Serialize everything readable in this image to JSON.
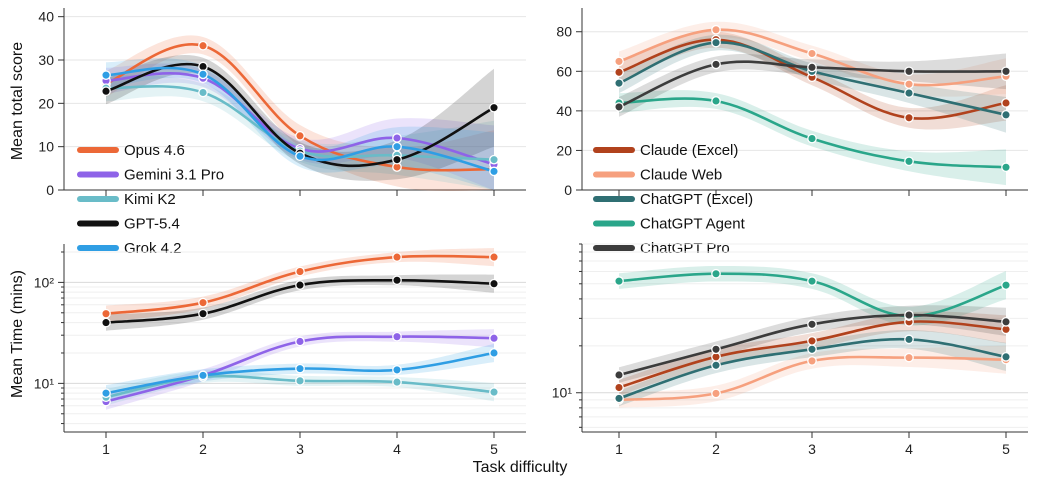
{
  "figure": {
    "xlabel": "Task difficulty",
    "ylabel_top": "Mean total score",
    "ylabel_bottom": "Mean Time (mins)"
  },
  "colors": {
    "Opus 4.6": "#ec6837",
    "Gemini 3.1 Pro": "#8e63e8",
    "Kimi K2": "#69bcc8",
    "GPT-5.4": "#111111",
    "Grok 4.2": "#2f9ee4",
    "Claude (Excel)": "#b1421d",
    "Claude Web": "#f6a07e",
    "ChatGPT (Excel)": "#2f6f73",
    "ChatGPT Agent": "#2aa68a",
    "ChatGPT Pro": "#3c3c3c"
  },
  "chart_data": [
    {
      "type": "line",
      "panel": "top-left",
      "x": [
        1,
        2,
        3,
        4,
        5
      ],
      "xticks": [
        "1",
        "2",
        "3",
        "4",
        "5"
      ],
      "ylim": [
        0,
        42
      ],
      "yticks": [
        "0",
        "10",
        "20",
        "30",
        "40"
      ],
      "ylabel": "Mean total score",
      "xlabel": "",
      "legend": "bottom-left",
      "series": [
        {
          "name": "Opus 4.6",
          "values": [
            24.5,
            33.3,
            12.5,
            5.3,
            4.8
          ]
        },
        {
          "name": "Gemini 3.1 Pro",
          "values": [
            25.2,
            25.8,
            9.5,
            12.0,
            5.9
          ]
        },
        {
          "name": "Kimi K2",
          "values": [
            23.5,
            22.5,
            9.0,
            8.0,
            7.0
          ]
        },
        {
          "name": "GPT-5.4",
          "values": [
            22.8,
            28.5,
            8.5,
            7.0,
            19.0
          ]
        },
        {
          "name": "Grok 4.2",
          "values": [
            26.5,
            26.7,
            7.8,
            10.0,
            4.3
          ]
        }
      ]
    },
    {
      "type": "line",
      "panel": "top-right",
      "x": [
        1,
        2,
        3,
        4,
        5
      ],
      "xticks": [
        "1",
        "2",
        "3",
        "4",
        "5"
      ],
      "ylim": [
        0,
        92
      ],
      "yticks": [
        "0",
        "20",
        "40",
        "60",
        "80"
      ],
      "ylabel": "",
      "xlabel": "",
      "legend": "bottom-left",
      "series": [
        {
          "name": "Claude (Excel)",
          "values": [
            59.5,
            76.0,
            57.0,
            36.5,
            44.0
          ]
        },
        {
          "name": "Claude Web",
          "values": [
            65.0,
            81.0,
            69.0,
            53.5,
            57.5
          ]
        },
        {
          "name": "ChatGPT (Excel)",
          "values": [
            54.0,
            74.5,
            60.0,
            49.0,
            38.0
          ]
        },
        {
          "name": "ChatGPT Agent",
          "values": [
            44.0,
            45.0,
            26.0,
            14.5,
            11.5
          ]
        },
        {
          "name": "ChatGPT Pro",
          "values": [
            42.0,
            63.5,
            62.0,
            60.0,
            60.0
          ]
        }
      ]
    },
    {
      "type": "line",
      "panel": "bottom-left",
      "scale": "log",
      "x": [
        1,
        2,
        3,
        4,
        5
      ],
      "xticks": [
        "1",
        "2",
        "3",
        "4",
        "5"
      ],
      "ylim": [
        3.3,
        240
      ],
      "yticks": [
        "10¹",
        "10²"
      ],
      "ylabel": "Mean Time (mins)",
      "xlabel": "Task difficulty",
      "series": [
        {
          "name": "Opus 4.6",
          "values": [
            49,
            63,
            128,
            178,
            178
          ]
        },
        {
          "name": "Gemini 3.1 Pro",
          "values": [
            6.6,
            12.0,
            26.0,
            29.0,
            28.0
          ]
        },
        {
          "name": "Kimi K2",
          "values": [
            7.3,
            11.6,
            10.6,
            10.3,
            8.2
          ]
        },
        {
          "name": "GPT-5.4",
          "values": [
            40,
            49,
            94,
            105,
            97
          ]
        },
        {
          "name": "Grok 4.2",
          "values": [
            8.0,
            12.0,
            14.0,
            13.6,
            20.0
          ]
        }
      ]
    },
    {
      "type": "line",
      "panel": "bottom-right",
      "scale": "log",
      "x": [
        1,
        2,
        3,
        4,
        5
      ],
      "xticks": [
        "1",
        "2",
        "3",
        "4",
        "5"
      ],
      "ylim": [
        5.6,
        90
      ],
      "yticks": [
        "10¹"
      ],
      "ylabel": "",
      "xlabel": "Task difficulty",
      "series": [
        {
          "name": "Claude (Excel)",
          "values": [
            10.8,
            17.0,
            21.5,
            28.5,
            25.5
          ]
        },
        {
          "name": "Claude Web",
          "values": [
            9.0,
            9.9,
            16.0,
            16.8,
            16.3
          ]
        },
        {
          "name": "ChatGPT (Excel)",
          "values": [
            9.2,
            15.0,
            19.0,
            22.0,
            17.0
          ]
        },
        {
          "name": "ChatGPT Agent",
          "values": [
            52,
            58,
            52,
            31,
            49
          ]
        },
        {
          "name": "ChatGPT Pro",
          "values": [
            13.0,
            19.0,
            27.5,
            31.5,
            28.5
          ]
        }
      ]
    }
  ]
}
